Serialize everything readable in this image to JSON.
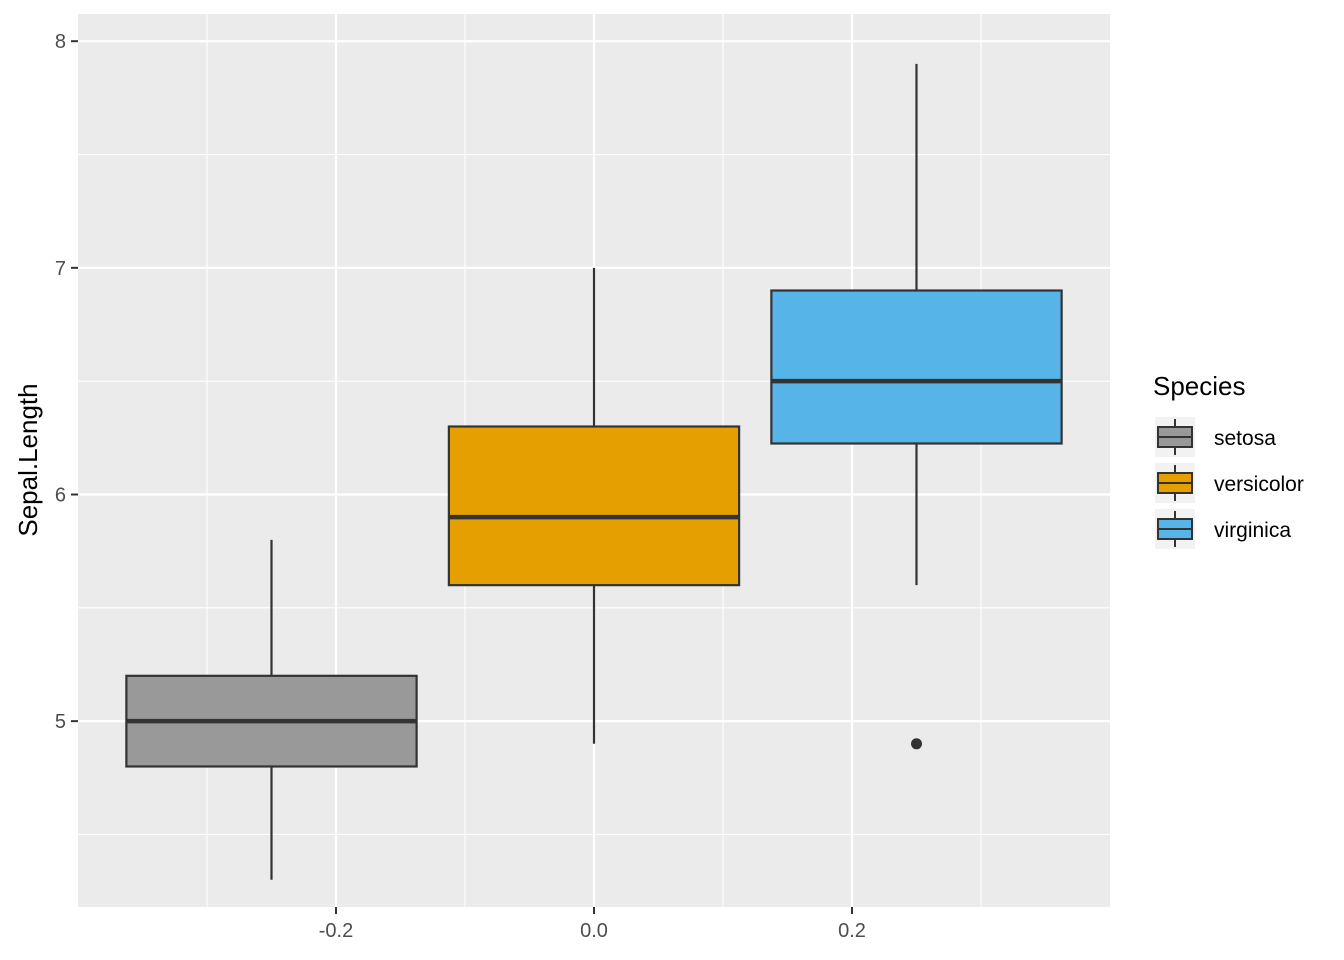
{
  "chart_data": {
    "type": "boxplot",
    "title": "",
    "xlabel": "",
    "ylabel": "Sepal.Length",
    "xlim": [
      -0.4,
      0.4
    ],
    "ylim": [
      4.18,
      8.12
    ],
    "x_ticks": [
      -0.2,
      0.0,
      0.2
    ],
    "x_tick_labels": [
      "-0.2",
      "0.0",
      "0.2"
    ],
    "y_ticks": [
      5,
      6,
      7,
      8
    ],
    "y_tick_labels": [
      "5",
      "6",
      "7",
      "8"
    ],
    "grid": true,
    "legend": {
      "title": "Species",
      "position": "right"
    },
    "series": [
      {
        "name": "setosa",
        "color": "#999999",
        "x_center": -0.25,
        "half_width": 0.1125,
        "whisker_low": 4.3,
        "q1": 4.8,
        "median": 5.0,
        "q3": 5.2,
        "whisker_high": 5.8,
        "outliers": []
      },
      {
        "name": "versicolor",
        "color": "#E69F00",
        "x_center": 0.0,
        "half_width": 0.1125,
        "whisker_low": 4.9,
        "q1": 5.6,
        "median": 5.9,
        "q3": 6.3,
        "whisker_high": 7.0,
        "outliers": []
      },
      {
        "name": "virginica",
        "color": "#56B4E9",
        "x_center": 0.25,
        "half_width": 0.1125,
        "whisker_low": 5.6,
        "q1": 6.225,
        "median": 6.5,
        "q3": 6.9,
        "whisker_high": 7.9,
        "outliers": [
          4.9
        ]
      }
    ]
  }
}
